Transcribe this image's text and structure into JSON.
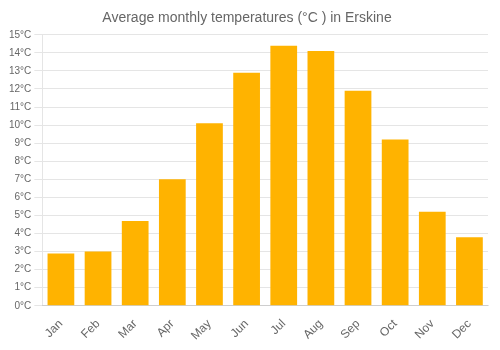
{
  "chart_data": {
    "type": "bar",
    "title": "Average monthly temperatures (°C ) in Erskine",
    "categories": [
      "Jan",
      "Feb",
      "Mar",
      "Apr",
      "May",
      "Jun",
      "Jul",
      "Aug",
      "Sep",
      "Oct",
      "Nov",
      "Dec"
    ],
    "values": [
      2.9,
      3.0,
      4.7,
      7.0,
      10.1,
      12.9,
      14.4,
      14.1,
      11.9,
      9.2,
      5.2,
      3.8
    ],
    "color": "#FFB300",
    "ylim": [
      0,
      15
    ],
    "yticks": [
      {
        "value": 0,
        "label": "0°C"
      },
      {
        "value": 1,
        "label": "1°C"
      },
      {
        "value": 2,
        "label": "2°C"
      },
      {
        "value": 3,
        "label": "3°C"
      },
      {
        "value": 4,
        "label": "4°C"
      },
      {
        "value": 5,
        "label": "5°C"
      },
      {
        "value": 6,
        "label": "6°C"
      },
      {
        "value": 7,
        "label": "7°C"
      },
      {
        "value": 8,
        "label": "8°C"
      },
      {
        "value": 9,
        "label": "9°C"
      },
      {
        "value": 10,
        "label": "10°C"
      },
      {
        "value": 11,
        "label": "11°C"
      },
      {
        "value": 12,
        "label": "12°C"
      },
      {
        "value": 13,
        "label": "13°C"
      },
      {
        "value": 14,
        "label": "14°C"
      },
      {
        "value": 15,
        "label": "15°C"
      }
    ],
    "grid": true
  }
}
